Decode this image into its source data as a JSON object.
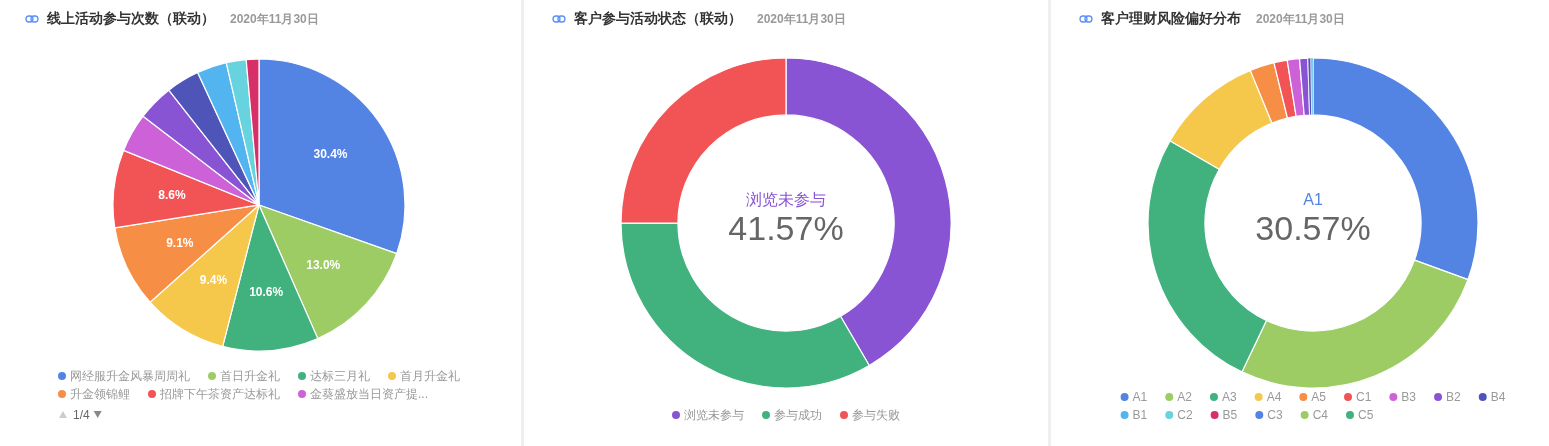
{
  "chart_data": [
    {
      "type": "pie",
      "title": "线上活动参与次数（联动）",
      "subtitle": "2020年11月30日",
      "categories": [
        "网经服升金风暴周周礼",
        "首日升金礼",
        "达标三月礼",
        "首月升金礼",
        "升金领锦鲤",
        "招牌下午茶资产达标礼",
        "金葵盛放当日资产提...",
        null,
        null,
        null,
        null,
        null
      ],
      "values": [
        30.4,
        13.0,
        10.6,
        9.4,
        9.1,
        8.6,
        4.3,
        4.0,
        3.7,
        3.3,
        2.2,
        1.4
      ],
      "colors": [
        "#5484e3",
        "#9dcc65",
        "#41b27d",
        "#f5c84b",
        "#f78e46",
        "#f25456",
        "#cd62d8",
        "#8854d4",
        "#4f55b8",
        "#53b5ef",
        "#66d3de",
        "#d72f68"
      ],
      "value_labels": [
        "30.4%",
        "13.0%",
        "10.6%",
        "9.4%",
        "9.1%",
        "8.6%",
        null,
        null,
        null,
        null,
        null,
        null
      ],
      "legend": "bottom",
      "annotations": [
        "1/4"
      ]
    },
    {
      "type": "donut",
      "title": "客户参与活动状态（联动）",
      "subtitle": "2020年11月30日",
      "categories": [
        "浏览未参与",
        "参与成功",
        "参与失败"
      ],
      "values": [
        41.57,
        33.4,
        25.0
      ],
      "colors": [
        "#8854d4",
        "#41b27d",
        "#f25456"
      ],
      "value_labels": [
        "41.57%",
        null,
        null
      ],
      "legend": "bottom"
    },
    {
      "type": "donut",
      "title": "客户理财风险偏好分布",
      "subtitle": "2020年11月30日",
      "categories": [
        "A1",
        "A2",
        "A3",
        "A4",
        "A5",
        "C1",
        "B3",
        "B2",
        "B4",
        "B1",
        "C2",
        "B5",
        "C3",
        "C4",
        "C5"
      ],
      "values": [
        30.57,
        26.5,
        26.2,
        10.5,
        2.4,
        1.3,
        1.2,
        0.8,
        0.3,
        0.2,
        null,
        null,
        null,
        null,
        null
      ],
      "colors": [
        "#5484e3",
        "#9dcc65",
        "#41b27d",
        "#f5c84b",
        "#f78e46",
        "#f25456",
        "#cd62d8",
        "#8854d4",
        "#4f55b8",
        "#53b5ef",
        "#66d3de",
        "#d72f68",
        "#5484e3",
        "#9dcc65",
        "#41b27d"
      ],
      "value_labels": [
        "30.57%",
        null,
        null,
        null,
        null,
        null,
        null,
        null,
        null,
        null,
        null,
        null,
        null,
        null,
        null
      ],
      "legend": "bottom"
    }
  ]
}
